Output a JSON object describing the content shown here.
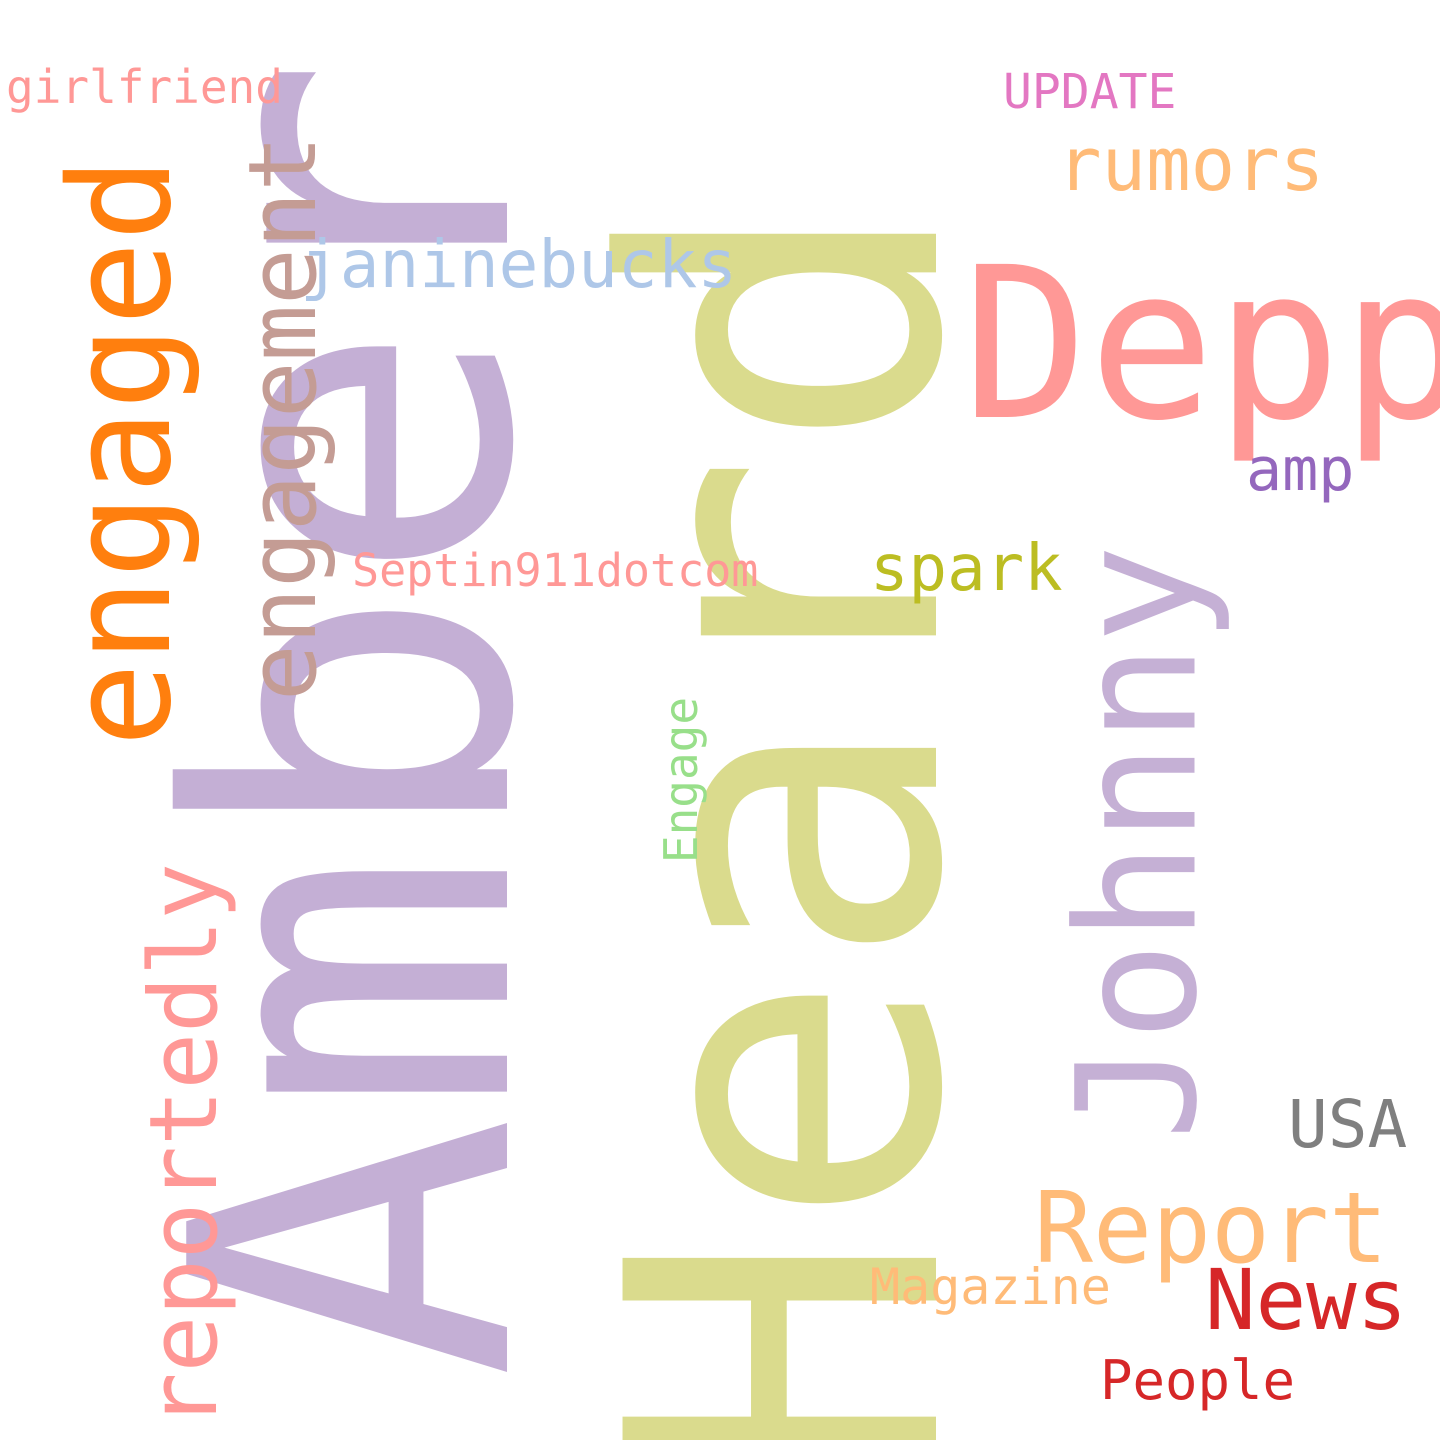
{
  "words": [
    {
      "text": "Amber",
      "color": "#c4afd5"
    },
    {
      "text": "Heard",
      "color": "#dadb8d"
    },
    {
      "text": "Depp",
      "color": "#ff9896"
    },
    {
      "text": "Johnny",
      "color": "#c5b0d5"
    },
    {
      "text": "engaged",
      "color": "#ff7f0e"
    },
    {
      "text": "engagement",
      "color": "#c49c94"
    },
    {
      "text": "reportedly",
      "color": "#ff9896"
    },
    {
      "text": "Report",
      "color": "#ffbb78"
    },
    {
      "text": "rumors",
      "color": "#ffbb78"
    },
    {
      "text": "janinebucks",
      "color": "#aec7e8"
    },
    {
      "text": "News",
      "color": "#d62728"
    },
    {
      "text": "spark",
      "color": "#bcbd22"
    },
    {
      "text": "USA",
      "color": "#7f7f7f"
    },
    {
      "text": "Magazine",
      "color": "#ffbb78"
    },
    {
      "text": "People",
      "color": "#d62728"
    },
    {
      "text": "Septin911dotcom",
      "color": "#ff9896"
    },
    {
      "text": "Engage",
      "color": "#98df8a"
    },
    {
      "text": "amp",
      "color": "#9467bd"
    },
    {
      "text": "UPDATE",
      "color": "#e377c2"
    },
    {
      "text": "girlfriend",
      "color": "#ff9896"
    }
  ]
}
